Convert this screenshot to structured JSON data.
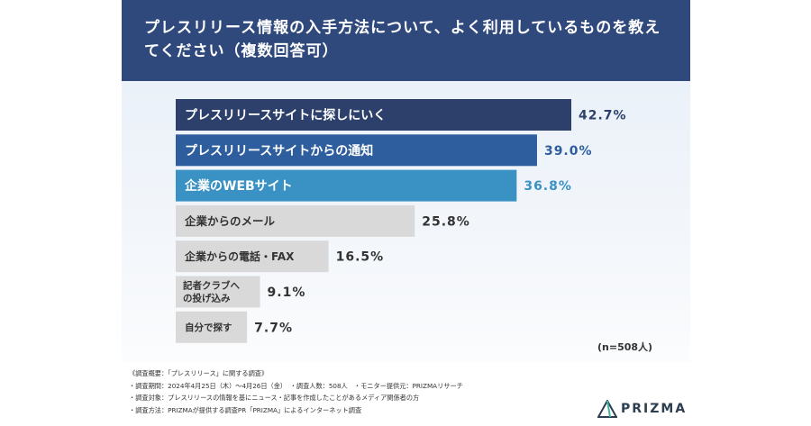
{
  "header": {
    "title": "プレスリリース情報の入手方法について、よく利用しているものを教えてください（複数回答可）"
  },
  "chart_data": {
    "type": "bar",
    "orientation": "horizontal",
    "categories": [
      "プレスリリースサイトに探しにいく",
      "プレスリリースサイトからの通知",
      "企業のWEBサイト",
      "企業からのメール",
      "企業からの電話・FAX",
      "記者クラブへの投げ込み",
      "自分で探す"
    ],
    "values": [
      42.7,
      39.0,
      36.8,
      25.8,
      16.5,
      9.1,
      7.7
    ],
    "value_labels": [
      "42.7%",
      "39.0%",
      "36.8%",
      "25.8%",
      "16.5%",
      "9.1%",
      "7.7%"
    ],
    "bar_colors": [
      "#2d3f6b",
      "#2e5e9e",
      "#3a91c4",
      "#d9d9d9",
      "#d9d9d9",
      "#d9d9d9",
      "#d9d9d9"
    ],
    "value_colors": [
      "#2d3f6b",
      "#2e5e9e",
      "#3a91c4",
      "#333333",
      "#333333",
      "#333333",
      "#333333"
    ],
    "label_colors": [
      "#ffffff",
      "#ffffff",
      "#ffffff",
      "#333333",
      "#333333",
      "#333333",
      "#333333"
    ],
    "xlim": [
      0,
      100
    ],
    "grid": false,
    "legend": "none"
  },
  "sample_note": "(n=508人)",
  "footer": {
    "notes": [
      "《調査概要：「プレスリリース」に関する調査》",
      "・調査期間：2024年4月25日（木）〜4月26日（金）　・調査人数：508人　・モニター提供元：PRIZMAリサーチ",
      "・調査対象：プレスリリースの情報を基にニュース・記事を作成したことがあるメディア関係者の方",
      "・調査方法：PRIZMAが提供する調査PR「PRIZMA」によるインターネット調査"
    ],
    "logo_text": "PRIZMA",
    "logo_icon": "prizma-logo-icon"
  }
}
